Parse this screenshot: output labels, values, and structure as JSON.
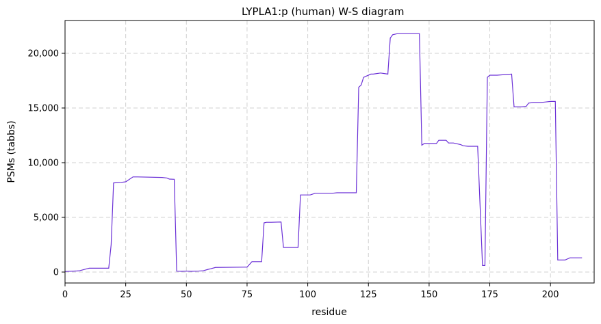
{
  "chart_data": {
    "type": "line",
    "title": "LYPLA1:p (human) W-S diagram",
    "xlabel": "residue",
    "ylabel": "PSMs (tabbs)",
    "xlim": [
      0,
      218
    ],
    "ylim": [
      -1000,
      23000
    ],
    "xticks": [
      0,
      25,
      50,
      75,
      100,
      125,
      150,
      175,
      200
    ],
    "yticks": [
      0,
      5000,
      10000,
      15000,
      20000
    ],
    "ytick_labels": [
      "0",
      "5,000",
      "10,000",
      "15,000",
      "20,000"
    ],
    "grid": true,
    "line_color": "#6a2fd6",
    "series": [
      {
        "name": "",
        "x": [
          0,
          5,
          6,
          9,
          10,
          18,
          19,
          20,
          23,
          25,
          28,
          30,
          40,
          42,
          43,
          45,
          46,
          48,
          50,
          52,
          55,
          57,
          59,
          60,
          62,
          74,
          75,
          77,
          81,
          82,
          83,
          85,
          89,
          90,
          94,
          96,
          97,
          100,
          101,
          103,
          108,
          110,
          112,
          119,
          120,
          121,
          122,
          123,
          124,
          126,
          127,
          130,
          133,
          134,
          135,
          137,
          146,
          147,
          148,
          150,
          153,
          154,
          157,
          158,
          160,
          163,
          164,
          166,
          170,
          172,
          173,
          174,
          175,
          176,
          178,
          184,
          185,
          186,
          188,
          190,
          191,
          193,
          196,
          198,
          200,
          202,
          203,
          204,
          206,
          208,
          209,
          211,
          213
        ],
        "y": [
          50,
          100,
          120,
          300,
          350,
          350,
          2500,
          8150,
          8200,
          8250,
          8700,
          8700,
          8650,
          8600,
          8500,
          8480,
          80,
          70,
          90,
          70,
          90,
          120,
          250,
          300,
          420,
          450,
          450,
          950,
          950,
          4500,
          4550,
          4550,
          4580,
          2250,
          2250,
          2250,
          7050,
          7050,
          7050,
          7200,
          7200,
          7200,
          7250,
          7250,
          7250,
          16900,
          17100,
          17800,
          17900,
          18100,
          18100,
          18200,
          18100,
          21400,
          21700,
          21800,
          21800,
          11600,
          11750,
          11750,
          11750,
          12050,
          12050,
          11800,
          11800,
          11650,
          11550,
          11500,
          11500,
          600,
          600,
          17800,
          18000,
          18000,
          18000,
          18100,
          15100,
          15100,
          15100,
          15150,
          15450,
          15500,
          15500,
          15550,
          15600,
          15600,
          1100,
          1100,
          1100,
          1300,
          1300,
          1300,
          1300
        ]
      }
    ]
  }
}
